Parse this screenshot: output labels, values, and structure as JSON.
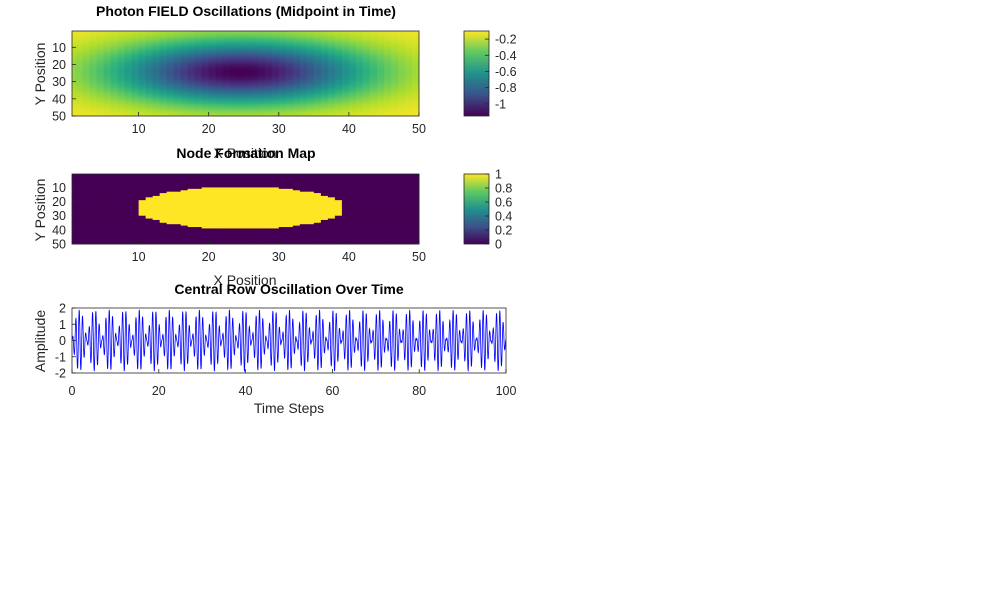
{
  "chart_data": [
    {
      "type": "heatmap",
      "title": "Photon FIELD Oscillations (Midpoint in Time)",
      "xlabel": "X Position",
      "ylabel": "Y Position",
      "x_range": [
        1,
        50
      ],
      "y_range": [
        1,
        50
      ],
      "xticks": [
        "10",
        "20",
        "30",
        "40",
        "50"
      ],
      "yticks": [
        "10",
        "20",
        "30",
        "40",
        "50"
      ],
      "field": {
        "shape": "gaussian",
        "center_x": 25,
        "center_y": 25,
        "min": -1.15,
        "max": -0.1
      },
      "colormap": "viridis",
      "colorbar": {
        "ticks": [
          "-0.2",
          "-0.4",
          "-0.6",
          "-0.8",
          "-1"
        ],
        "tick_values": [
          -0.2,
          -0.4,
          -0.6,
          -0.8,
          -1.0
        ],
        "range": [
          -1.15,
          -0.1
        ]
      }
    },
    {
      "type": "heatmap",
      "title": "Node Formation Map",
      "xlabel": "X Position",
      "ylabel": "Y Position",
      "x_range": [
        1,
        50
      ],
      "y_range": [
        1,
        50
      ],
      "xticks": [
        "10",
        "20",
        "30",
        "40",
        "50"
      ],
      "yticks": [
        "10",
        "20",
        "30",
        "40",
        "50"
      ],
      "mask": {
        "shape": "ellipse",
        "center_x": 25,
        "center_y": 25,
        "threshold": 0.5,
        "value_inside": 1,
        "value_outside": 0
      },
      "colormap": "viridis",
      "colorbar": {
        "ticks": [
          "1",
          "0.8",
          "0.6",
          "0.4",
          "0.2",
          "0"
        ],
        "tick_values": [
          1,
          0.8,
          0.6,
          0.4,
          0.2,
          0
        ],
        "range": [
          0,
          1
        ]
      }
    },
    {
      "type": "line",
      "title": "Central Row Oscillation Over Time",
      "xlabel": "Time Steps",
      "ylabel": "Amplitude",
      "xlim": [
        0,
        100
      ],
      "ylim": [
        -2,
        2
      ],
      "xticks": [
        "0",
        "20",
        "40",
        "60",
        "80",
        "100"
      ],
      "yticks": [
        "2",
        "1",
        "0",
        "-1",
        "-2"
      ],
      "series": [
        {
          "color": "#0000ff",
          "pattern": "oscillating bursts of about 1.8 amplitude, roughly 29 cycles over 100 steps"
        }
      ]
    }
  ]
}
